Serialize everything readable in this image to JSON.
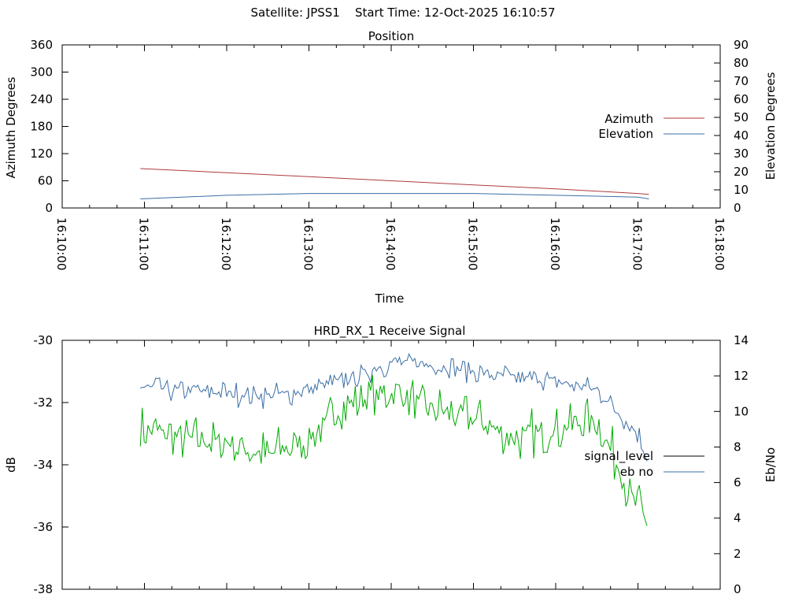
{
  "header": {
    "satellite_label": "Satellite:",
    "satellite": "JPSS1",
    "start_label": "Start Time:",
    "start_time": "12-Oct-2025 16:10:57"
  },
  "colors": {
    "azimuth": "#b03a3a",
    "elevation": "#3a6ea5",
    "signal_level": "#000000",
    "ebno_blue": "#3a6ea5",
    "ebno_green": "#00aa00"
  },
  "chart_data": [
    {
      "type": "line",
      "title": "Position",
      "xlabel": "Time",
      "ylabel": "Azimuth Degrees",
      "y2label": "Elevation Degrees",
      "xlim": [
        "16:10:00",
        "16:18:00"
      ],
      "xticks": [
        "16:10:00",
        "16:11:00",
        "16:12:00",
        "16:13:00",
        "16:14:00",
        "16:15:00",
        "16:16:00",
        "16:17:00",
        "16:18:00"
      ],
      "ylim": [
        0,
        360
      ],
      "yticks": [
        0,
        60,
        120,
        180,
        240,
        300,
        360
      ],
      "y2lim": [
        0,
        90
      ],
      "y2ticks": [
        0,
        10,
        20,
        30,
        40,
        50,
        60,
        70,
        80,
        90
      ],
      "legend": "right",
      "series": [
        {
          "name": "Azimuth",
          "axis": "left",
          "x": [
            "16:10:57",
            "16:12:00",
            "16:13:00",
            "16:14:00",
            "16:15:00",
            "16:16:00",
            "16:17:00",
            "16:17:08"
          ],
          "values": [
            87,
            78,
            69,
            60,
            51,
            42,
            32,
            30
          ]
        },
        {
          "name": "Elevation",
          "axis": "right",
          "x": [
            "16:10:57",
            "16:12:00",
            "16:13:00",
            "16:14:00",
            "16:15:00",
            "16:16:00",
            "16:17:00",
            "16:17:08"
          ],
          "values": [
            5,
            7,
            8,
            8,
            8,
            7,
            6,
            5
          ]
        }
      ]
    },
    {
      "type": "line",
      "title": "HRD_RX_1 Receive Signal",
      "xlabel": "",
      "ylabel": "dB",
      "y2label": "Eb/No",
      "xlim": [
        "16:10:00",
        "16:18:00"
      ],
      "ylim": [
        -38,
        -30
      ],
      "yticks": [
        -38,
        -36,
        -34,
        -32,
        -30
      ],
      "y2lim": [
        0,
        14
      ],
      "y2ticks": [
        0,
        2,
        4,
        6,
        8,
        10,
        12,
        14
      ],
      "legend": "right",
      "series": [
        {
          "name": "signal_level",
          "axis": "left",
          "x": [
            "16:10:57",
            "16:11:30",
            "16:12:00",
            "16:12:30",
            "16:13:00",
            "16:13:30",
            "16:14:00",
            "16:14:30",
            "16:15:00",
            "16:15:30",
            "16:16:00",
            "16:16:30",
            "16:17:00",
            "16:17:08"
          ],
          "values": [
            -31.5,
            -31.6,
            -31.7,
            -31.8,
            -31.6,
            -31.2,
            -30.7,
            -30.8,
            -31.0,
            -31.2,
            -31.3,
            -31.6,
            -33.0,
            -34.0
          ]
        },
        {
          "name": "eb no",
          "axis": "right",
          "x": [
            "16:10:57",
            "16:11:30",
            "16:12:00",
            "16:12:30",
            "16:13:00",
            "16:13:30",
            "16:14:00",
            "16:14:30",
            "16:15:00",
            "16:15:30",
            "16:16:00",
            "16:16:30",
            "16:17:00",
            "16:17:08"
          ],
          "values": [
            9.0,
            8.5,
            8.3,
            7.5,
            8.5,
            10.5,
            11.0,
            10.2,
            9.5,
            8.5,
            9.0,
            9.5,
            4.5,
            3.5
          ]
        }
      ]
    }
  ],
  "legend_labels": {
    "azimuth": "Azimuth",
    "elevation": "Elevation",
    "signal_level": "signal_level",
    "ebno": "eb no"
  }
}
